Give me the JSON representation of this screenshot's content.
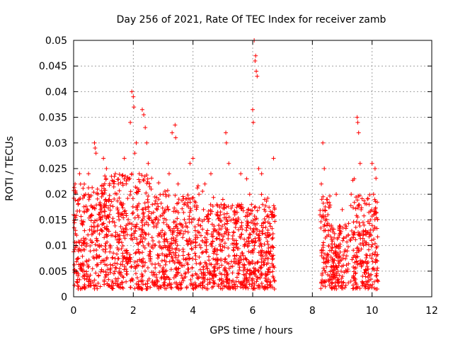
{
  "chart_data": {
    "type": "scatter",
    "title": "Day 256 of 2021, Rate Of TEC Index for receiver zamb",
    "xlabel": "GPS time / hours",
    "ylabel": "ROTI / TECUs",
    "xlim": [
      0,
      12
    ],
    "ylim": [
      0,
      0.05
    ],
    "x_ticks": [
      "0",
      "2",
      "4",
      "6",
      "8",
      "10",
      "12"
    ],
    "y_ticks": [
      "0",
      "0.005",
      "0.01",
      "0.015",
      "0.02",
      "0.025",
      "0.03",
      "0.035",
      "0.04",
      "0.045",
      "0.05"
    ],
    "grid": true,
    "marker": "+",
    "color": "#ff0000",
    "series": [
      {
        "name": "ROTI",
        "description": "dense scatter of ROTI values per satellite pass; data present from 0 to about 6.7 h and from about 8.2 to 10.2 h",
        "points": [
          {
            "x": 0.0,
            "y": 0.016
          },
          {
            "x": 0.05,
            "y": 0.022
          },
          {
            "x": 0.1,
            "y": 0.012
          },
          {
            "x": 0.15,
            "y": 0.018
          },
          {
            "x": 0.2,
            "y": 0.024
          },
          {
            "x": 0.25,
            "y": 0.009
          },
          {
            "x": 0.3,
            "y": 0.014
          },
          {
            "x": 0.35,
            "y": 0.005
          },
          {
            "x": 0.4,
            "y": 0.02
          },
          {
            "x": 0.5,
            "y": 0.024
          },
          {
            "x": 0.6,
            "y": 0.013
          },
          {
            "x": 0.7,
            "y": 0.03
          },
          {
            "x": 0.72,
            "y": 0.029
          },
          {
            "x": 0.75,
            "y": 0.028
          },
          {
            "x": 0.8,
            "y": 0.021
          },
          {
            "x": 0.9,
            "y": 0.017
          },
          {
            "x": 1.0,
            "y": 0.027
          },
          {
            "x": 1.1,
            "y": 0.025
          },
          {
            "x": 1.2,
            "y": 0.019
          },
          {
            "x": 1.3,
            "y": 0.012
          },
          {
            "x": 1.4,
            "y": 0.024
          },
          {
            "x": 1.5,
            "y": 0.022
          },
          {
            "x": 1.6,
            "y": 0.018
          },
          {
            "x": 1.7,
            "y": 0.027
          },
          {
            "x": 1.8,
            "y": 0.023
          },
          {
            "x": 1.9,
            "y": 0.034
          },
          {
            "x": 1.95,
            "y": 0.04
          },
          {
            "x": 2.0,
            "y": 0.039
          },
          {
            "x": 2.02,
            "y": 0.037
          },
          {
            "x": 2.05,
            "y": 0.028
          },
          {
            "x": 2.1,
            "y": 0.03
          },
          {
            "x": 2.2,
            "y": 0.024
          },
          {
            "x": 2.3,
            "y": 0.0365
          },
          {
            "x": 2.35,
            "y": 0.0355
          },
          {
            "x": 2.4,
            "y": 0.033
          },
          {
            "x": 2.45,
            "y": 0.03
          },
          {
            "x": 2.5,
            "y": 0.026
          },
          {
            "x": 2.6,
            "y": 0.021
          },
          {
            "x": 2.8,
            "y": 0.017
          },
          {
            "x": 3.0,
            "y": 0.02
          },
          {
            "x": 3.2,
            "y": 0.024
          },
          {
            "x": 3.3,
            "y": 0.032
          },
          {
            "x": 3.4,
            "y": 0.0335
          },
          {
            "x": 3.42,
            "y": 0.031
          },
          {
            "x": 3.5,
            "y": 0.022
          },
          {
            "x": 3.7,
            "y": 0.018
          },
          {
            "x": 3.9,
            "y": 0.026
          },
          {
            "x": 4.0,
            "y": 0.027
          },
          {
            "x": 4.2,
            "y": 0.02
          },
          {
            "x": 4.4,
            "y": 0.022
          },
          {
            "x": 4.6,
            "y": 0.024
          },
          {
            "x": 4.8,
            "y": 0.018
          },
          {
            "x": 5.0,
            "y": 0.019
          },
          {
            "x": 5.1,
            "y": 0.032
          },
          {
            "x": 5.12,
            "y": 0.03
          },
          {
            "x": 5.2,
            "y": 0.026
          },
          {
            "x": 5.4,
            "y": 0.016
          },
          {
            "x": 5.6,
            "y": 0.024
          },
          {
            "x": 5.8,
            "y": 0.023
          },
          {
            "x": 5.9,
            "y": 0.02
          },
          {
            "x": 6.05,
            "y": 0.05
          },
          {
            "x": 6.08,
            "y": 0.046
          },
          {
            "x": 6.1,
            "y": 0.047
          },
          {
            "x": 6.12,
            "y": 0.044
          },
          {
            "x": 6.15,
            "y": 0.043
          },
          {
            "x": 6.0,
            "y": 0.0365
          },
          {
            "x": 6.02,
            "y": 0.034
          },
          {
            "x": 6.2,
            "y": 0.025
          },
          {
            "x": 6.3,
            "y": 0.024
          },
          {
            "x": 6.4,
            "y": 0.019
          },
          {
            "x": 6.5,
            "y": 0.012
          },
          {
            "x": 6.7,
            "y": 0.027
          },
          {
            "x": 6.7,
            "y": 0.006
          },
          {
            "x": 8.3,
            "y": 0.022
          },
          {
            "x": 8.35,
            "y": 0.03
          },
          {
            "x": 8.4,
            "y": 0.025
          },
          {
            "x": 8.5,
            "y": 0.019
          },
          {
            "x": 8.6,
            "y": 0.013
          },
          {
            "x": 8.8,
            "y": 0.02
          },
          {
            "x": 9.0,
            "y": 0.017
          },
          {
            "x": 9.1,
            "y": 0.014
          },
          {
            "x": 9.2,
            "y": 0.012
          },
          {
            "x": 9.3,
            "y": 0.02
          },
          {
            "x": 9.4,
            "y": 0.023
          },
          {
            "x": 9.5,
            "y": 0.035
          },
          {
            "x": 9.52,
            "y": 0.034
          },
          {
            "x": 9.55,
            "y": 0.032
          },
          {
            "x": 9.6,
            "y": 0.026
          },
          {
            "x": 9.7,
            "y": 0.012
          },
          {
            "x": 9.9,
            "y": 0.018
          },
          {
            "x": 10.0,
            "y": 0.026
          },
          {
            "x": 10.05,
            "y": 0.02
          },
          {
            "x": 10.1,
            "y": 0.025
          },
          {
            "x": 10.15,
            "y": 0.008
          },
          {
            "x": 10.2,
            "y": 0.003
          }
        ]
      }
    ]
  }
}
